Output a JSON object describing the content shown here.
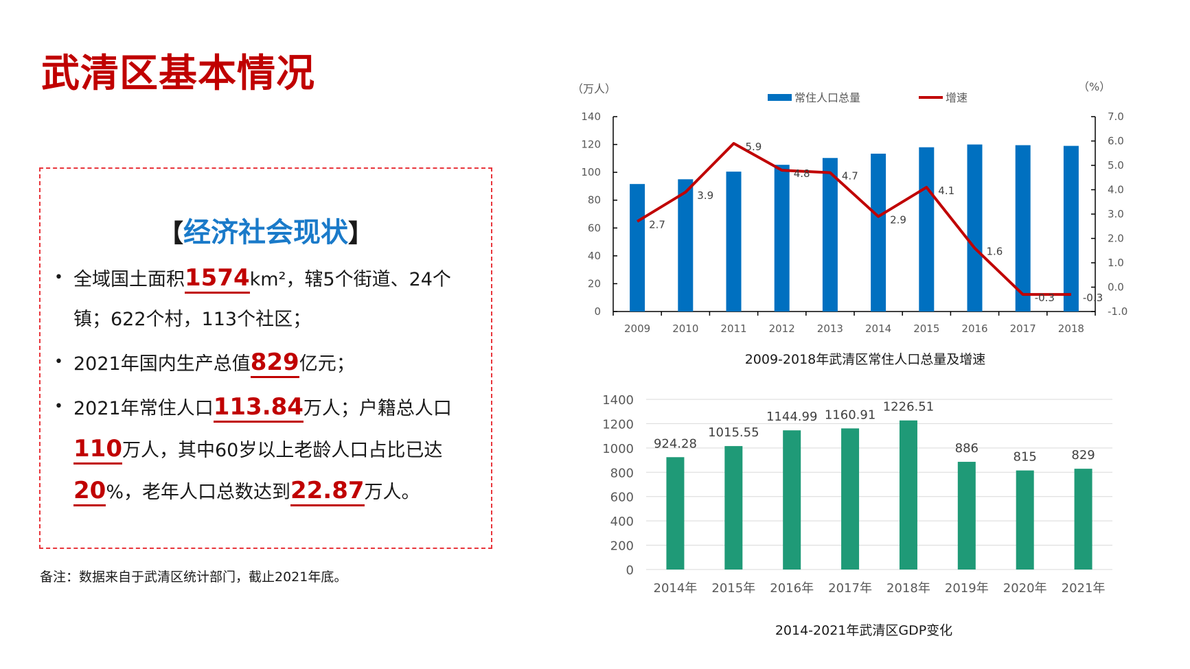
{
  "page": {
    "title": "武清区基本情况"
  },
  "info_box": {
    "bracket_left": "【",
    "heading": "经济社会现状",
    "bracket_right": "】",
    "bullets": [
      {
        "pre": "全域国土面积",
        "hl": "1574",
        "post": "km²，辖5个街道、24个镇；622个村，113个社区；"
      },
      {
        "pre": "2021年国内生产总值",
        "hl": "829",
        "post": "亿元；"
      },
      {
        "pre": "2021年常住人口",
        "hl": "113.84",
        "mid1": "万人；户籍总人口",
        "hl2": "110",
        "mid2": "万人，其中60岁以上老龄人口占比已达",
        "hl3": "20",
        "mid3": "%，老年人口总数达到",
        "hl4": "22.87",
        "post": "万人。"
      }
    ]
  },
  "note": "备注：数据来自于武清区统计部门，截止2021年底。",
  "colors": {
    "title_red": "#c00000",
    "heading_blue": "#1a7ac9",
    "bar_blue": "#0070c0",
    "line_red": "#c00000",
    "bar_green": "#1f9a77"
  },
  "chart_data": [
    {
      "type": "bar",
      "combo": "bar+line",
      "title": "2009-2018年武清区常住人口总量及增速",
      "categories": [
        "2009",
        "2010",
        "2011",
        "2012",
        "2013",
        "2014",
        "2015",
        "2016",
        "2017",
        "2018"
      ],
      "left_axis": {
        "label": "（万人）",
        "range": [
          0,
          140
        ],
        "ticks": [
          "0",
          "20",
          "40",
          "60",
          "80",
          "100",
          "120",
          "140"
        ]
      },
      "right_axis": {
        "label": "（%）",
        "range": [
          -1.0,
          7.0
        ],
        "ticks": [
          "-1.0",
          "0.0",
          "1.0",
          "2.0",
          "3.0",
          "4.0",
          "5.0",
          "6.0",
          "7.0"
        ]
      },
      "legend": {
        "position": "top",
        "items": [
          "常住人口总量",
          "增速"
        ]
      },
      "series": [
        {
          "name": "常住人口总量",
          "type": "bar",
          "axis": "left",
          "values": [
            91.6,
            95.0,
            100.5,
            105.4,
            110.3,
            113.4,
            118.0,
            120.0,
            119.5,
            119.0
          ]
        },
        {
          "name": "增速",
          "type": "line",
          "axis": "right",
          "values": [
            2.7,
            3.9,
            5.9,
            4.8,
            4.7,
            2.9,
            4.1,
            1.6,
            -0.3,
            -0.3
          ],
          "labels": [
            "2.7",
            "3.9",
            "5.9",
            "4.8",
            "4.7",
            "2.9",
            "4.1",
            "1.6",
            "-0.3",
            "-0.3"
          ]
        }
      ],
      "grid": false
    },
    {
      "type": "bar",
      "title": "2014-2021年武清区GDP变化",
      "categories": [
        "2014年",
        "2015年",
        "2016年",
        "2017年",
        "2018年",
        "2019年",
        "2020年",
        "2021年"
      ],
      "values": [
        924.28,
        1015.55,
        1144.99,
        1160.91,
        1226.51,
        886,
        815,
        829
      ],
      "labels": [
        "924.28",
        "1015.55",
        "1144.99",
        "1160.91",
        "1226.51",
        "886",
        "815",
        "829"
      ],
      "ylim": [
        0,
        1400
      ],
      "yticks": [
        "0",
        "200",
        "400",
        "600",
        "800",
        "1000",
        "1200",
        "1400"
      ],
      "xlabel": "",
      "ylabel": "",
      "grid": true
    }
  ]
}
